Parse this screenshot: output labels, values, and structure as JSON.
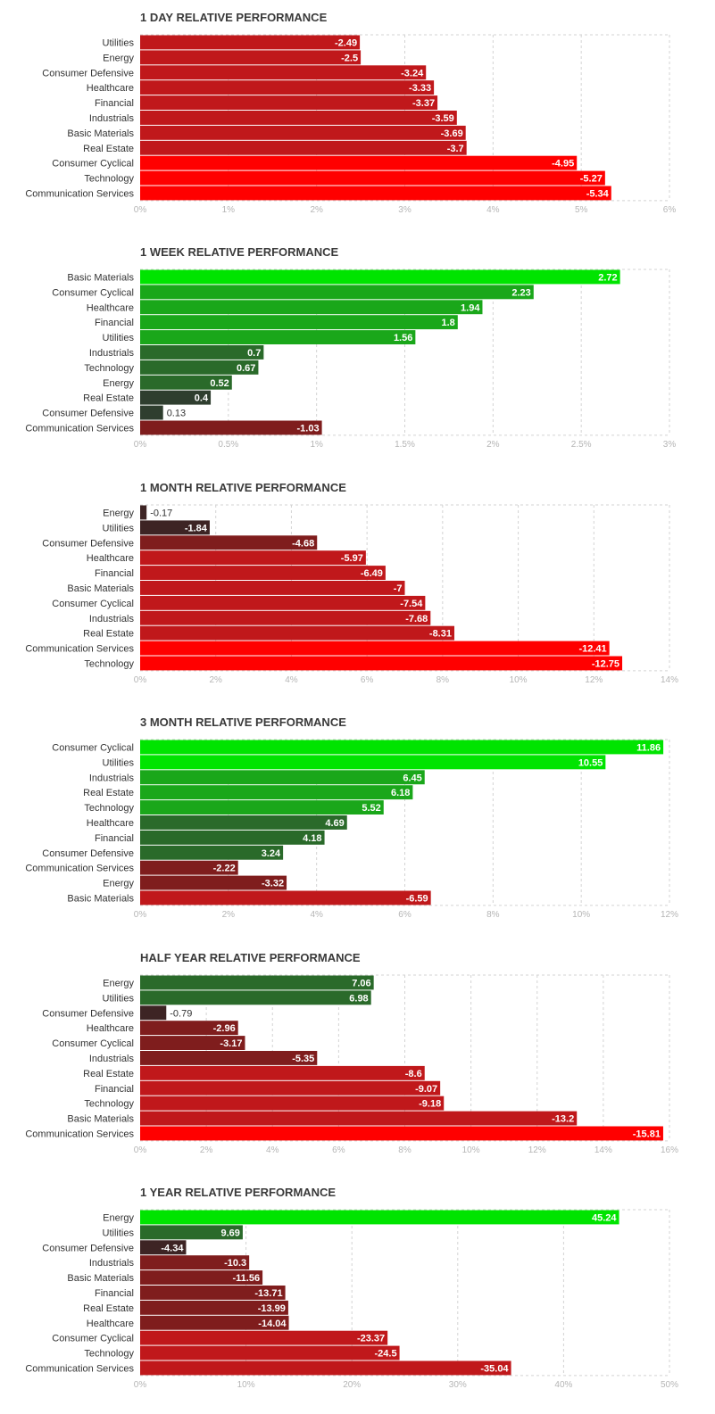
{
  "palette": {
    "neg_strong": "#ff0000",
    "neg_mid": "#c0181b",
    "neg_weak": "#7f1d1d",
    "neg_faint": "#3d2424",
    "pos_strong": "#00e400",
    "pos_mid": "#1aa71a",
    "pos_weak": "#2a6a2a",
    "pos_faint": "#2f3e2f",
    "grid": "#d3d3d3"
  },
  "chart_data": [
    {
      "type": "bar",
      "orientation": "horizontal",
      "title": "1 DAY RELATIVE PERFORMANCE",
      "categories": [
        "Utilities",
        "Energy",
        "Consumer Defensive",
        "Healthcare",
        "Financial",
        "Industrials",
        "Basic Materials",
        "Real Estate",
        "Consumer Cyclical",
        "Technology",
        "Communication Services"
      ],
      "values": [
        -2.49,
        -2.5,
        -3.24,
        -3.33,
        -3.37,
        -3.59,
        -3.69,
        -3.7,
        -4.95,
        -5.27,
        -5.34
      ],
      "value_labels": [
        "-2.49",
        "-2.5",
        "-3.24",
        "-3.33",
        "-3.37",
        "-3.59",
        "-3.69",
        "-3.7",
        "-4.95",
        "-5.27",
        "-5.34"
      ],
      "xlim": [
        0,
        6
      ],
      "ticks": [
        0,
        1,
        2,
        3,
        4,
        5,
        6
      ],
      "tick_labels": [
        "0%",
        "1%",
        "2%",
        "3%",
        "4%",
        "5%",
        "6%"
      ],
      "grid": true
    },
    {
      "type": "bar",
      "orientation": "horizontal",
      "title": "1 WEEK RELATIVE PERFORMANCE",
      "categories": [
        "Basic Materials",
        "Consumer Cyclical",
        "Healthcare",
        "Financial",
        "Utilities",
        "Industrials",
        "Technology",
        "Energy",
        "Real Estate",
        "Consumer Defensive",
        "Communication Services"
      ],
      "values": [
        2.72,
        2.23,
        1.94,
        1.8,
        1.56,
        0.7,
        0.67,
        0.52,
        0.4,
        0.13,
        -1.03
      ],
      "value_labels": [
        "2.72",
        "2.23",
        "1.94",
        "1.8",
        "1.56",
        "0.7",
        "0.67",
        "0.52",
        "0.4",
        "0.13",
        "-1.03"
      ],
      "xlim": [
        0,
        3
      ],
      "ticks": [
        0,
        0.5,
        1,
        1.5,
        2,
        2.5,
        3
      ],
      "tick_labels": [
        "0%",
        "0.5%",
        "1%",
        "1.5%",
        "2%",
        "2.5%",
        "3%"
      ],
      "grid": true
    },
    {
      "type": "bar",
      "orientation": "horizontal",
      "title": "1 MONTH RELATIVE PERFORMANCE",
      "categories": [
        "Energy",
        "Utilities",
        "Consumer Defensive",
        "Healthcare",
        "Financial",
        "Basic Materials",
        "Consumer Cyclical",
        "Industrials",
        "Real Estate",
        "Communication Services",
        "Technology"
      ],
      "values": [
        -0.17,
        -1.84,
        -4.68,
        -5.97,
        -6.49,
        -7,
        -7.54,
        -7.68,
        -8.31,
        -12.41,
        -12.75
      ],
      "value_labels": [
        "-0.17",
        "-1.84",
        "-4.68",
        "-5.97",
        "-6.49",
        "-7",
        "-7.54",
        "-7.68",
        "-8.31",
        "-12.41",
        "-12.75"
      ],
      "xlim": [
        0,
        14
      ],
      "ticks": [
        0,
        2,
        4,
        6,
        8,
        10,
        12,
        14
      ],
      "tick_labels": [
        "0%",
        "2%",
        "4%",
        "6%",
        "8%",
        "10%",
        "12%",
        "14%"
      ],
      "grid": true
    },
    {
      "type": "bar",
      "orientation": "horizontal",
      "title": "3 MONTH RELATIVE PERFORMANCE",
      "categories": [
        "Consumer Cyclical",
        "Utilities",
        "Industrials",
        "Real Estate",
        "Technology",
        "Healthcare",
        "Financial",
        "Consumer Defensive",
        "Communication Services",
        "Energy",
        "Basic Materials"
      ],
      "values": [
        11.86,
        10.55,
        6.45,
        6.18,
        5.52,
        4.69,
        4.18,
        3.24,
        -2.22,
        -3.32,
        -6.59
      ],
      "value_labels": [
        "11.86",
        "10.55",
        "6.45",
        "6.18",
        "5.52",
        "4.69",
        "4.18",
        "3.24",
        "-2.22",
        "-3.32",
        "-6.59"
      ],
      "xlim": [
        0,
        12
      ],
      "ticks": [
        0,
        2,
        4,
        6,
        8,
        10,
        12
      ],
      "tick_labels": [
        "0%",
        "2%",
        "4%",
        "6%",
        "8%",
        "10%",
        "12%"
      ],
      "grid": true
    },
    {
      "type": "bar",
      "orientation": "horizontal",
      "title": "HALF YEAR RELATIVE PERFORMANCE",
      "categories": [
        "Energy",
        "Utilities",
        "Consumer Defensive",
        "Healthcare",
        "Consumer Cyclical",
        "Industrials",
        "Real Estate",
        "Financial",
        "Technology",
        "Basic Materials",
        "Communication Services"
      ],
      "values": [
        7.06,
        6.98,
        -0.79,
        -2.96,
        -3.17,
        -5.35,
        -8.6,
        -9.07,
        -9.18,
        -13.2,
        -15.81
      ],
      "value_labels": [
        "7.06",
        "6.98",
        "-0.79",
        "-2.96",
        "-3.17",
        "-5.35",
        "-8.6",
        "-9.07",
        "-9.18",
        "-13.2",
        "-15.81"
      ],
      "xlim": [
        0,
        16
      ],
      "ticks": [
        0,
        2,
        4,
        6,
        8,
        10,
        12,
        14,
        16
      ],
      "tick_labels": [
        "0%",
        "2%",
        "4%",
        "6%",
        "8%",
        "10%",
        "12%",
        "14%",
        "16%"
      ],
      "grid": true
    },
    {
      "type": "bar",
      "orientation": "horizontal",
      "title": "1 YEAR RELATIVE PERFORMANCE",
      "categories": [
        "Energy",
        "Utilities",
        "Consumer Defensive",
        "Industrials",
        "Basic Materials",
        "Financial",
        "Real Estate",
        "Healthcare",
        "Consumer Cyclical",
        "Technology",
        "Communication Services"
      ],
      "values": [
        45.24,
        9.69,
        -4.34,
        -10.3,
        -11.56,
        -13.71,
        -13.99,
        -14.04,
        -23.37,
        -24.5,
        -35.04
      ],
      "value_labels": [
        "45.24",
        "9.69",
        "-4.34",
        "-10.3",
        "-11.56",
        "-13.71",
        "-13.99",
        "-14.04",
        "-23.37",
        "-24.5",
        "-35.04"
      ],
      "xlim": [
        0,
        50
      ],
      "ticks": [
        0,
        10,
        20,
        30,
        40,
        50
      ],
      "tick_labels": [
        "0%",
        "10%",
        "20%",
        "30%",
        "40%",
        "50%"
      ],
      "grid": true
    }
  ]
}
